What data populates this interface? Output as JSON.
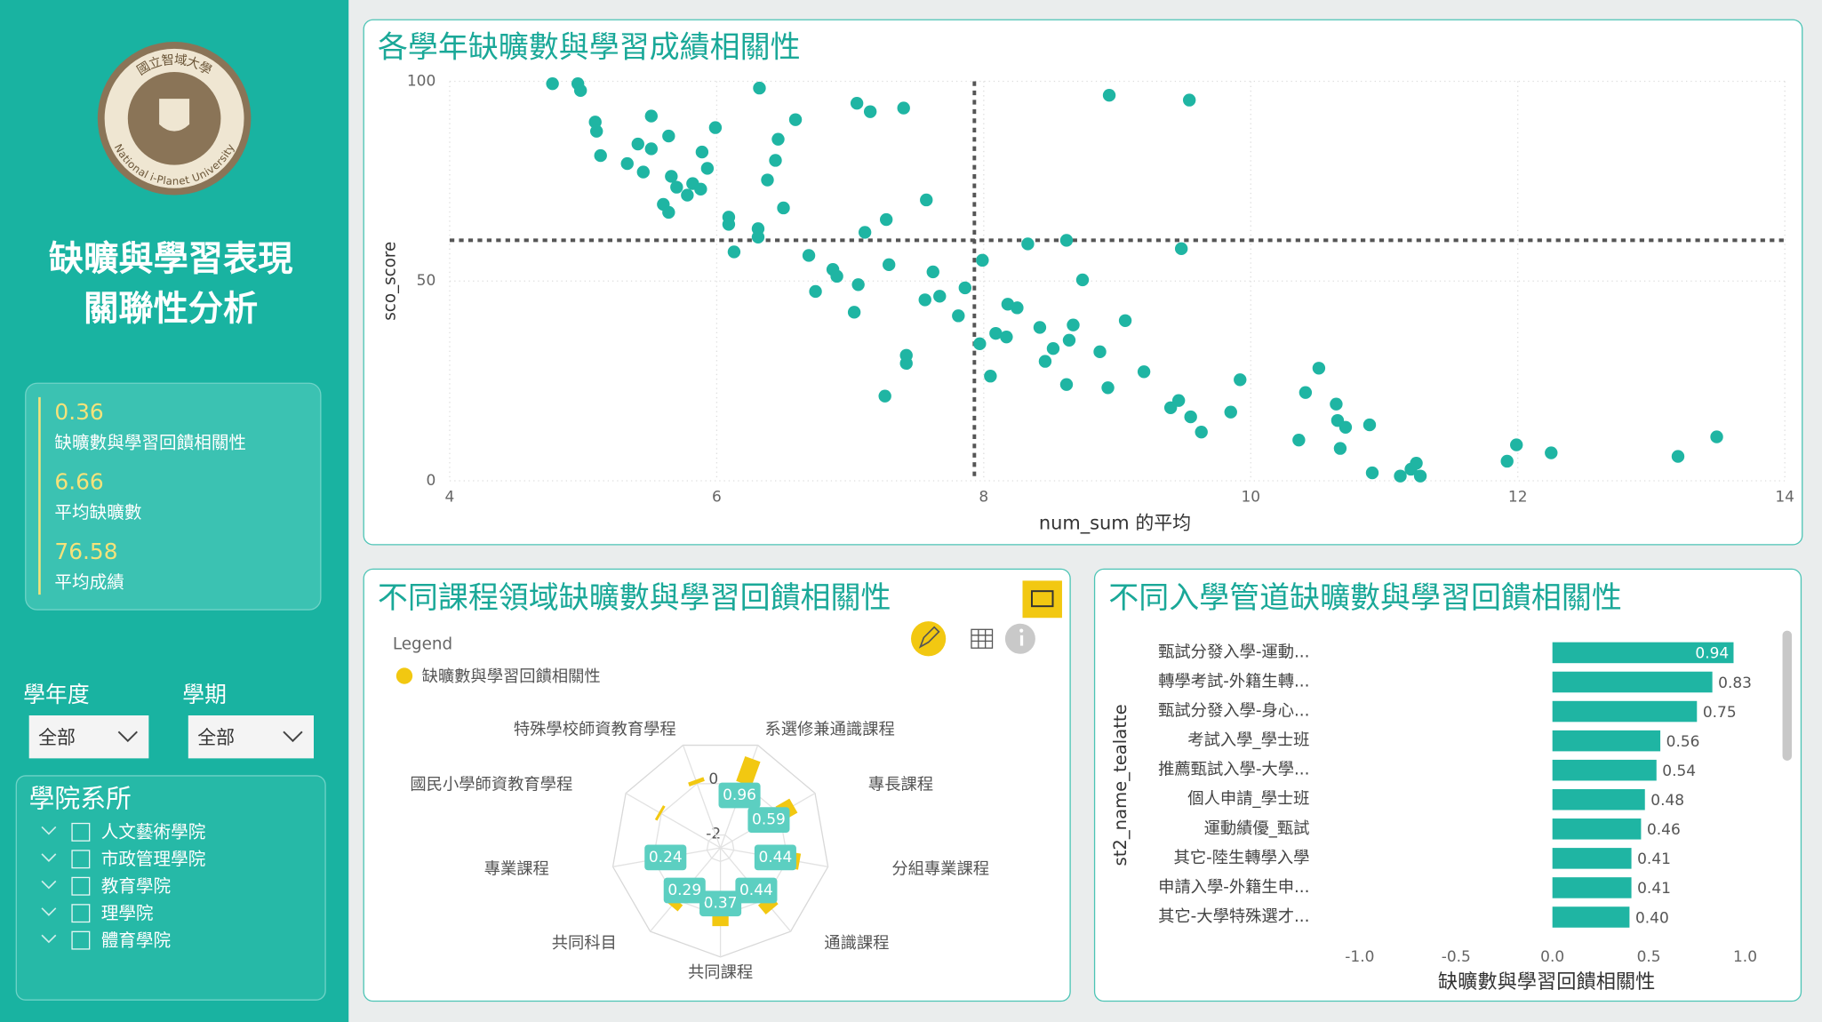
{
  "sidebar": {
    "logo_text": [
      "國立智域大學",
      "National i-Planet University"
    ],
    "title_lines": [
      "缺曠與學習表現",
      "關聯性分析"
    ],
    "kpis": [
      {
        "value": 0.36,
        "label": "缺曠數與學習回饋相關性"
      },
      {
        "value": 6.66,
        "label": "平均缺曠數"
      },
      {
        "value": 76.58,
        "label": "平均成績"
      }
    ],
    "filters": [
      {
        "label": "學年度",
        "value": "全部"
      },
      {
        "label": "學期",
        "value": "全部"
      }
    ],
    "dept_filter": {
      "title": "學院系所",
      "items": [
        "人文藝術學院",
        "市政管理學院",
        "教育學院",
        "理學院",
        "體育學院"
      ]
    }
  },
  "chart_data": [
    {
      "type": "scatter",
      "title": "各學年缺曠數與學習成績相關性",
      "xlabel": "num_sum 的平均",
      "ylabel": "sco_score",
      "color": "#1fb5a3",
      "grid": true,
      "xlim": [
        4,
        14
      ],
      "ylim": [
        0,
        100
      ],
      "xticks": [
        4,
        6,
        8,
        10,
        12,
        14
      ],
      "yticks": [
        0,
        50,
        100
      ],
      "reference_lines": {
        "x": 7.93,
        "y": 60.2
      },
      "x": [
        4.77,
        4.96,
        4.98,
        5.09,
        5.1,
        5.13,
        5.51,
        5.41,
        5.51,
        5.64,
        5.33,
        5.45,
        5.66,
        5.7,
        5.82,
        5.78,
        5.89,
        5.93,
        5.88,
        5.6,
        5.64,
        5.99,
        6.09,
        6.09,
        6.13,
        6.32,
        6.59,
        6.46,
        6.44,
        6.38,
        6.5,
        6.31,
        6.31,
        7.05,
        7.15,
        7.4,
        7.27,
        7.11,
        6.69,
        6.87,
        6.9,
        7.06,
        6.74,
        7.03,
        7.29,
        7.57,
        7.62,
        7.67,
        7.56,
        7.81,
        7.86,
        7.99,
        7.42,
        7.42,
        7.26,
        8.33,
        8.62,
        8.94,
        9.54,
        9.48,
        8.74,
        8.18,
        8.25,
        7.97,
        8.09,
        8.17,
        8.42,
        8.52,
        8.46,
        8.64,
        8.67,
        9.06,
        8.87,
        8.05,
        8.62,
        8.93,
        9.2,
        9.46,
        9.4,
        9.55,
        9.63,
        9.85,
        9.92,
        10.36,
        10.41,
        10.51,
        10.64,
        10.65,
        10.71,
        10.89,
        10.67,
        10.91,
        11.12,
        11.2,
        11.24,
        11.27,
        11.92,
        11.99,
        12.25,
        13.2,
        13.49
      ],
      "values": [
        99.4,
        99.4,
        97.7,
        89.8,
        87.5,
        81.4,
        91.3,
        84.3,
        83.1,
        86.3,
        79.4,
        77.3,
        76.2,
        73.5,
        74.4,
        71.5,
        82.3,
        78.2,
        73,
        69.2,
        67.2,
        88.4,
        66,
        64.2,
        57.3,
        98.3,
        90.4,
        85.5,
        80.2,
        75.3,
        68.3,
        63.1,
        61,
        94.5,
        92.4,
        93.3,
        65.4,
        62.2,
        56.4,
        52.9,
        51.2,
        49.1,
        47.4,
        42.2,
        54.1,
        70.3,
        52.3,
        46.2,
        45.3,
        41.3,
        48.3,
        55.2,
        31.4,
        29.4,
        21.2,
        59.3,
        60.2,
        96.5,
        95.3,
        58.1,
        50.3,
        44.2,
        43.3,
        34.3,
        36.9,
        36,
        38.4,
        33.1,
        29.9,
        35.2,
        39,
        40.1,
        32.3,
        26.2,
        24.1,
        23.3,
        27.3,
        20.1,
        18.3,
        16,
        12.2,
        17.2,
        25.3,
        10.2,
        22.1,
        28.2,
        19.2,
        15.1,
        13.4,
        14,
        8.1,
        2,
        1.2,
        2.9,
        4.4,
        1.2,
        4.9,
        9,
        7,
        6.1,
        11
      ]
    },
    {
      "type": "radar",
      "title": "不同課程領域缺曠數與學習回饋相關性",
      "legend_title": "Legend",
      "categories": [
        "系選修兼通識課程",
        "專長課程",
        "分組專業課程",
        "通識課程",
        "共同課程",
        "共同科目",
        "專業課程",
        "國民小學師資教育學程",
        "特殊學校師資教育學程"
      ],
      "series": [
        {
          "name": "缺曠數與學習回饋相關性",
          "color": "#f2c811",
          "values": [
            0.96,
            0.59,
            0.44,
            0.44,
            0.37,
            0.29,
            0.24,
            0.1,
            0.15
          ]
        }
      ],
      "value_labels": [
        "0.96",
        "0.59",
        "0.44",
        "0.44",
        "0.37",
        "0.29",
        "0.24",
        null,
        null
      ],
      "rlim": [
        -2.5,
        1.5
      ],
      "rticks": [
        0,
        -2
      ]
    },
    {
      "type": "bar",
      "orientation": "horizontal",
      "title": "不同入學管道缺曠數與學習回饋相關性",
      "xlabel": "缺曠數與學習回饋相關性",
      "ylabel": "st2_name_tealatte",
      "color": "#1fb5a3",
      "categories": [
        "甄試分發入學-運動...",
        "轉學考試-外籍生轉...",
        "甄試分發入學-身心...",
        "考試入學_學士班",
        "推薦甄試入學-大學...",
        "個人申請_學士班",
        "運動績優_甄試",
        "其它-陸生轉學入學",
        "申請入學-外籍生申...",
        "其它-大學特殊選才..."
      ],
      "values": [
        0.94,
        0.83,
        0.75,
        0.56,
        0.54,
        0.48,
        0.46,
        0.41,
        0.41,
        0.4
      ],
      "value_labels": [
        "0.94",
        "0.83",
        "0.75",
        "0.56",
        "0.54",
        "0.48",
        "0.46",
        "0.41",
        "0.41",
        "0.40"
      ],
      "xlim": [
        -1.2,
        1.2
      ],
      "xticks": [
        {
          "value": -1,
          "label": "-1.0"
        },
        {
          "value": -0.5,
          "label": "-0.5"
        },
        {
          "value": 0,
          "label": "0.0"
        },
        {
          "value": 0.5,
          "label": "0.5"
        },
        {
          "value": 1,
          "label": "1.0"
        }
      ]
    }
  ]
}
